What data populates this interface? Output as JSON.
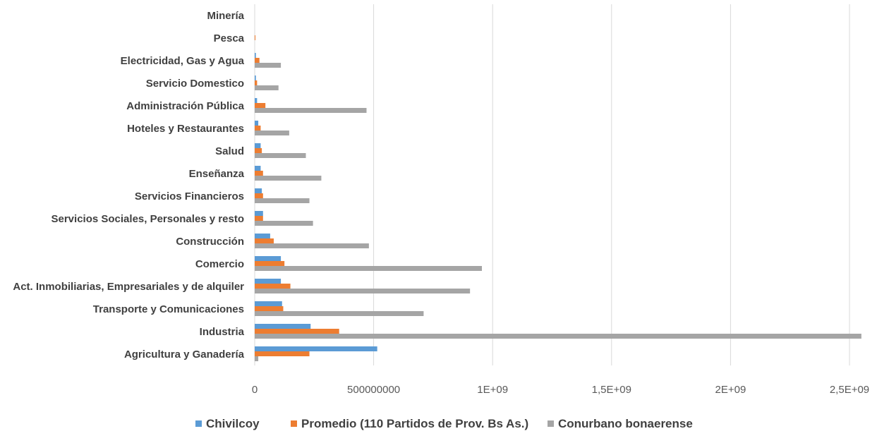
{
  "chart_data": {
    "type": "bar",
    "orientation": "horizontal",
    "categories": [
      "Minería",
      "Pesca",
      "Electricidad, Gas y Agua",
      "Servicio Domestico",
      "Administración Pública",
      "Hoteles y Restaurantes",
      "Salud",
      "Enseñanza",
      "Servicios Financieros",
      "Servicios Sociales, Personales y resto",
      "Construcción",
      "Comercio",
      "Act. Inmobiliarias, Empresariales y de alquiler",
      "Transporte y Comunicaciones",
      "Industria",
      "Agricultura y Ganadería"
    ],
    "series": [
      {
        "name": "Chivilcoy",
        "color": "#5b9bd5",
        "values": [
          0,
          0,
          5000000,
          5000000,
          10000000,
          15000000,
          25000000,
          25000000,
          30000000,
          35000000,
          65000000,
          110000000,
          110000000,
          115000000,
          235000000,
          515000000
        ]
      },
      {
        "name": "Promedio (110 Partidos de Prov. Bs As.)",
        "color": "#ed7d31",
        "values": [
          0,
          3000000,
          20000000,
          10000000,
          45000000,
          25000000,
          30000000,
          35000000,
          35000000,
          35000000,
          80000000,
          125000000,
          150000000,
          120000000,
          355000000,
          230000000
        ]
      },
      {
        "name": "Conurbano bonaerense",
        "color": "#a5a5a5",
        "values": [
          0,
          0,
          110000000,
          100000000,
          470000000,
          145000000,
          215000000,
          280000000,
          230000000,
          245000000,
          480000000,
          955000000,
          905000000,
          710000000,
          2550000000,
          15000000
        ]
      }
    ],
    "xlim": [
      0,
      2500000000
    ],
    "x_ticks": [
      "0",
      "500000000",
      "1E+09",
      "1,5E+09",
      "2E+09",
      "2,5E+09"
    ],
    "x_tick_values": [
      0,
      500000000,
      1000000000,
      1500000000,
      2000000000,
      2500000000
    ],
    "grid": "vertical",
    "legend": "bottom"
  }
}
